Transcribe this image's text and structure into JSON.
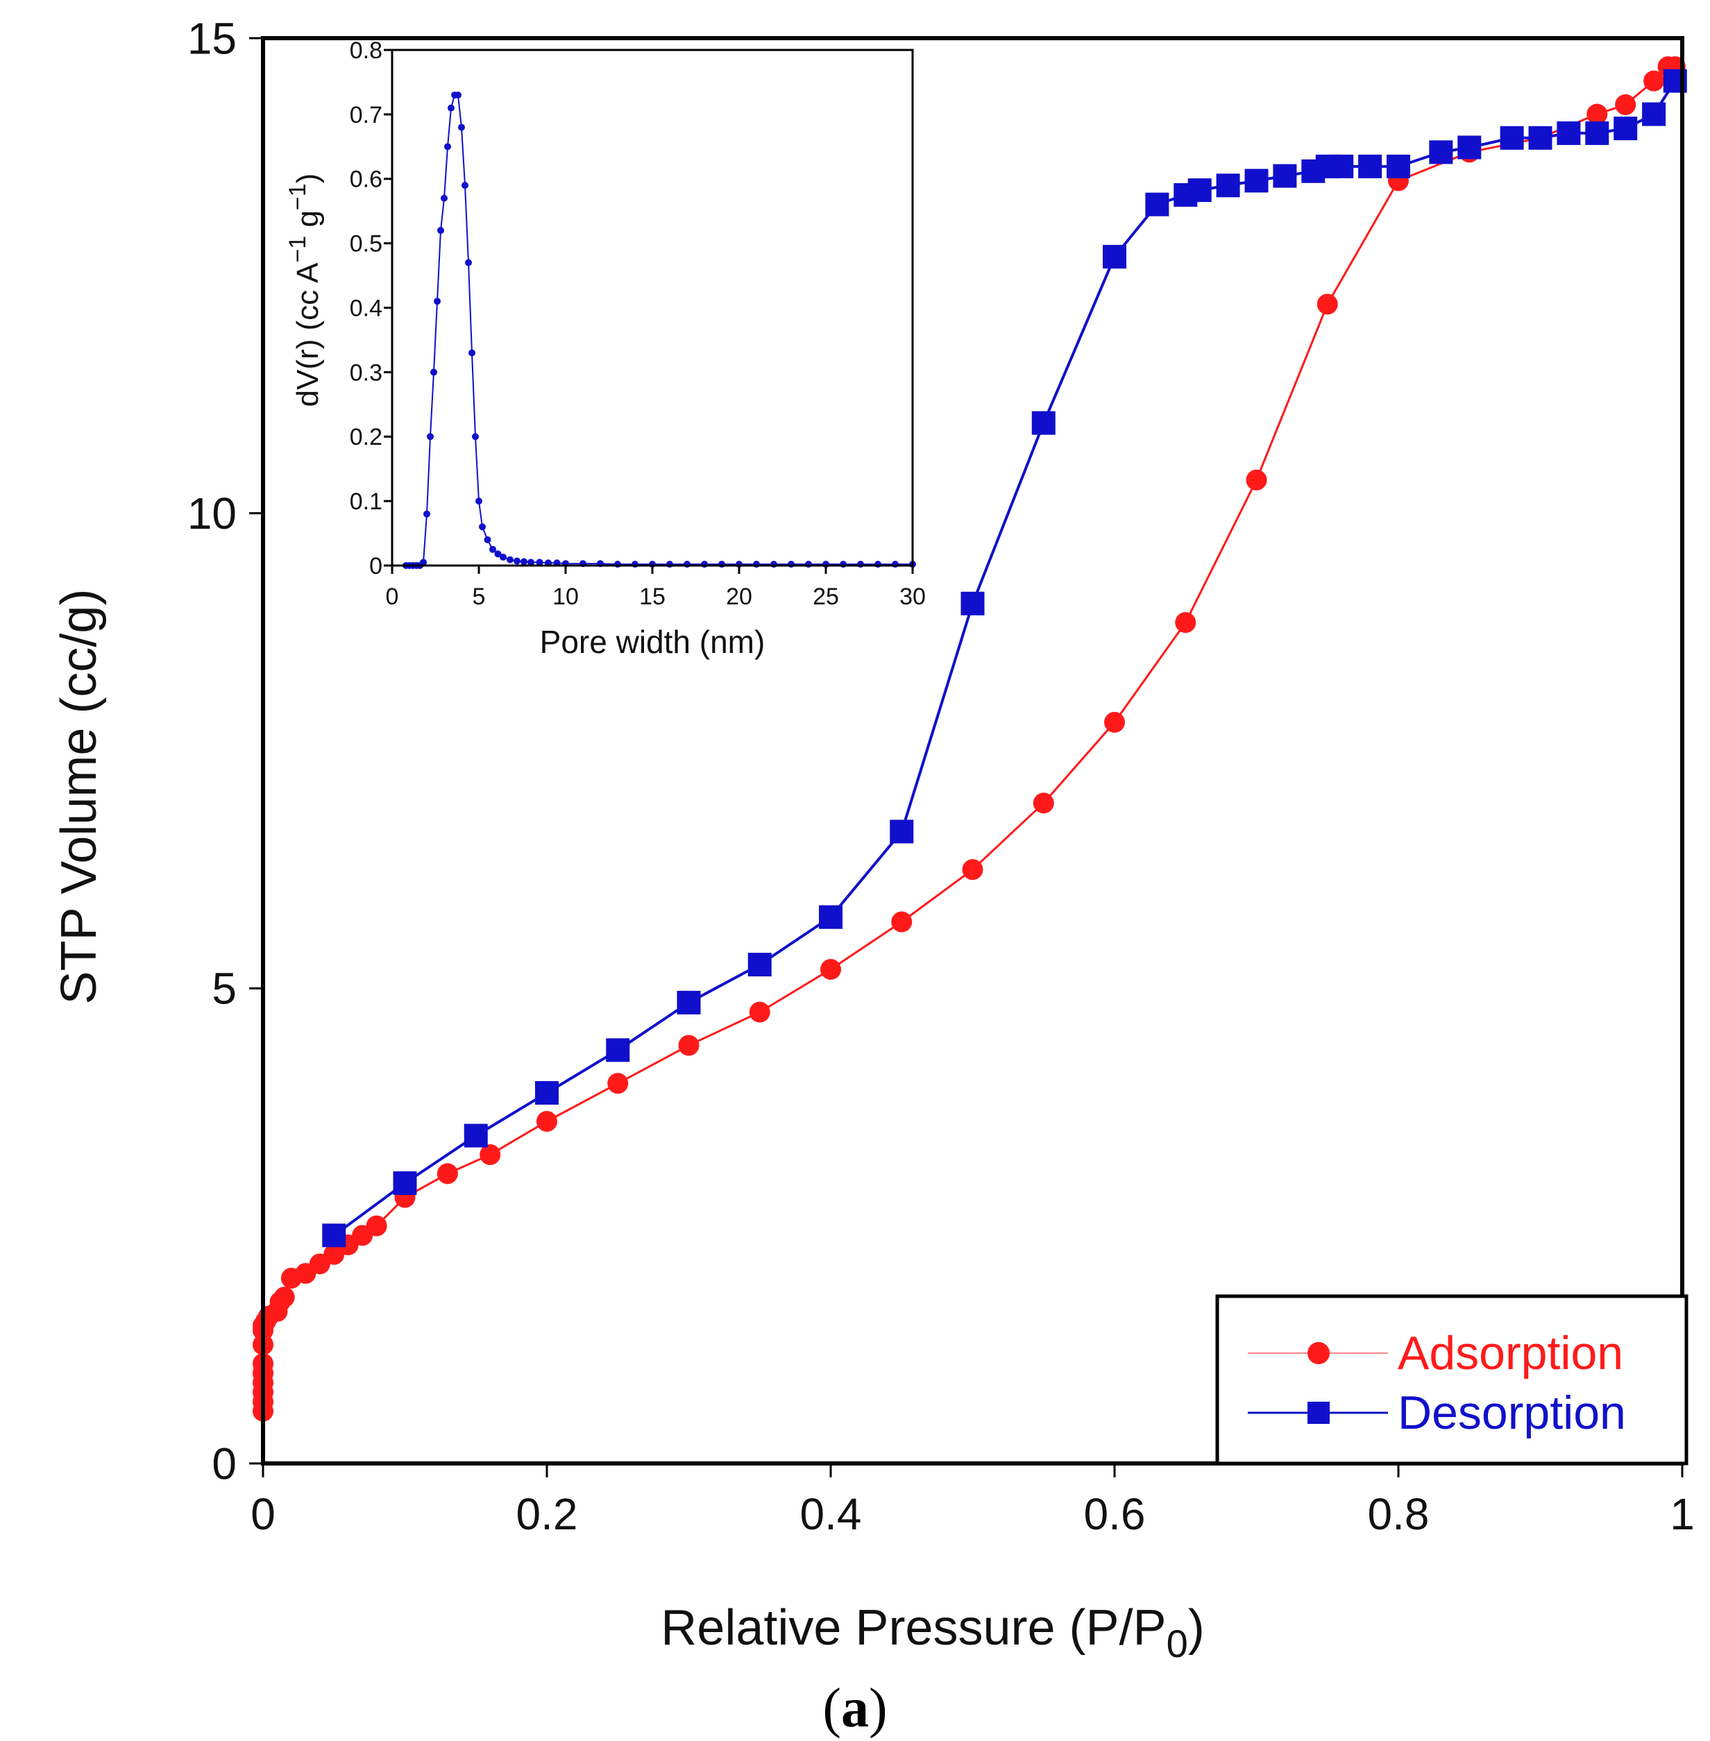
{
  "chart_data": [
    {
      "type": "scatter",
      "title": "",
      "xlabel": "Relative Pressure (P/P",
      "xlabel_subscript": "0",
      "xlabel_suffix": ")",
      "ylabel": "STP Volume (cc/g)",
      "xlim": [
        0,
        1
      ],
      "ylim": [
        0,
        15
      ],
      "xticks": [
        "0",
        "0.2",
        "0.4",
        "0.6",
        "0.8",
        "1"
      ],
      "xtick_values": [
        0,
        0.2,
        0.4,
        0.6,
        0.8,
        1.0
      ],
      "yticks": [
        "0",
        "5",
        "10",
        "15"
      ],
      "ytick_values": [
        0,
        5,
        10,
        15
      ],
      "grid": false,
      "legend_position": "bottom-right",
      "series": [
        {
          "name": "Adsorption",
          "marker": "circle",
          "color": "#ff1a1a",
          "x": [
            0.0,
            0.0,
            0.0,
            0.0,
            0.0,
            0.0,
            0.0,
            0.0,
            0.0,
            0.002,
            0.004,
            0.01,
            0.012,
            0.015,
            0.02,
            0.03,
            0.04,
            0.05,
            0.06,
            0.07,
            0.08,
            0.1,
            0.13,
            0.16,
            0.2,
            0.25,
            0.3,
            0.35,
            0.4,
            0.45,
            0.5,
            0.55,
            0.6,
            0.65,
            0.7,
            0.75,
            0.8,
            0.85,
            0.9,
            0.94,
            0.96,
            0.98,
            0.99,
            0.995
          ],
          "y": [
            0.55,
            0.65,
            0.75,
            0.85,
            0.95,
            1.05,
            1.25,
            1.45,
            1.4,
            1.5,
            1.55,
            1.6,
            1.7,
            1.75,
            1.95,
            2.0,
            2.1,
            2.2,
            2.3,
            2.4,
            2.5,
            2.8,
            3.05,
            3.25,
            3.6,
            4.0,
            4.4,
            4.75,
            5.2,
            5.7,
            6.25,
            6.95,
            7.8,
            8.85,
            10.35,
            12.2,
            13.5,
            13.8,
            13.95,
            14.2,
            14.3,
            14.55,
            14.7,
            14.7
          ]
        },
        {
          "name": "Desorption",
          "marker": "square",
          "color": "#1010cc",
          "x": [
            0.995,
            0.98,
            0.96,
            0.94,
            0.92,
            0.9,
            0.88,
            0.85,
            0.83,
            0.8,
            0.78,
            0.76,
            0.75,
            0.74,
            0.72,
            0.7,
            0.68,
            0.66,
            0.65,
            0.63,
            0.6,
            0.55,
            0.5,
            0.45,
            0.4,
            0.35,
            0.3,
            0.25,
            0.2,
            0.15,
            0.1,
            0.05
          ],
          "y": [
            14.55,
            14.2,
            14.05,
            14.0,
            14.0,
            13.95,
            13.95,
            13.85,
            13.8,
            13.65,
            13.65,
            13.65,
            13.65,
            13.6,
            13.55,
            13.5,
            13.45,
            13.4,
            13.35,
            13.25,
            12.7,
            10.95,
            9.05,
            6.65,
            5.75,
            5.25,
            4.85,
            4.35,
            3.9,
            3.45,
            2.95,
            2.4
          ]
        }
      ]
    },
    {
      "type": "line",
      "title": "",
      "xlabel": "Pore width (nm)",
      "ylabel": "dV(r) (cc A",
      "ylabel_sup1": "−1",
      "ylabel_mid": " g",
      "ylabel_sup2": "−1",
      "ylabel_end": ")",
      "xlim": [
        0,
        30
      ],
      "ylim": [
        0,
        0.8
      ],
      "xticks": [
        "0",
        "5",
        "10",
        "15",
        "20",
        "25",
        "30"
      ],
      "xtick_values": [
        0,
        5,
        10,
        15,
        20,
        25,
        30
      ],
      "yticks": [
        "0",
        "0.1",
        "0.2",
        "0.3",
        "0.4",
        "0.5",
        "0.6",
        "0.7",
        "0.8"
      ],
      "ytick_values": [
        0,
        0.1,
        0.2,
        0.3,
        0.4,
        0.5,
        0.6,
        0.7,
        0.8
      ],
      "grid": false,
      "series": [
        {
          "marker": "circle",
          "color": "#1010cc",
          "x": [
            0.8,
            1.0,
            1.2,
            1.4,
            1.6,
            1.8,
            2.0,
            2.2,
            2.4,
            2.6,
            2.8,
            3.0,
            3.2,
            3.4,
            3.6,
            3.8,
            4.0,
            4.2,
            4.4,
            4.6,
            4.8,
            5.0,
            5.2,
            5.5,
            5.8,
            6.1,
            6.4,
            6.8,
            7.2,
            7.6,
            8.0,
            8.5,
            9.0,
            9.5,
            10,
            11,
            12,
            13,
            14,
            15,
            16,
            17,
            18,
            19,
            20,
            21,
            22,
            23,
            24,
            25,
            26,
            27,
            28,
            29,
            30
          ],
          "y": [
            0.0,
            0.0,
            0.0,
            0.0,
            0.0,
            0.005,
            0.08,
            0.2,
            0.3,
            0.41,
            0.52,
            0.57,
            0.65,
            0.71,
            0.73,
            0.73,
            0.68,
            0.59,
            0.47,
            0.33,
            0.2,
            0.1,
            0.06,
            0.04,
            0.025,
            0.018,
            0.013,
            0.009,
            0.007,
            0.006,
            0.005,
            0.005,
            0.004,
            0.004,
            0.003,
            0.003,
            0.003,
            0.002,
            0.002,
            0.002,
            0.002,
            0.002,
            0.002,
            0.002,
            0.002,
            0.002,
            0.002,
            0.002,
            0.002,
            0.002,
            0.002,
            0.002,
            0.002,
            0.002,
            0.002
          ]
        }
      ]
    }
  ],
  "caption": {
    "open": "(",
    "letter": "a",
    "close": ")"
  }
}
